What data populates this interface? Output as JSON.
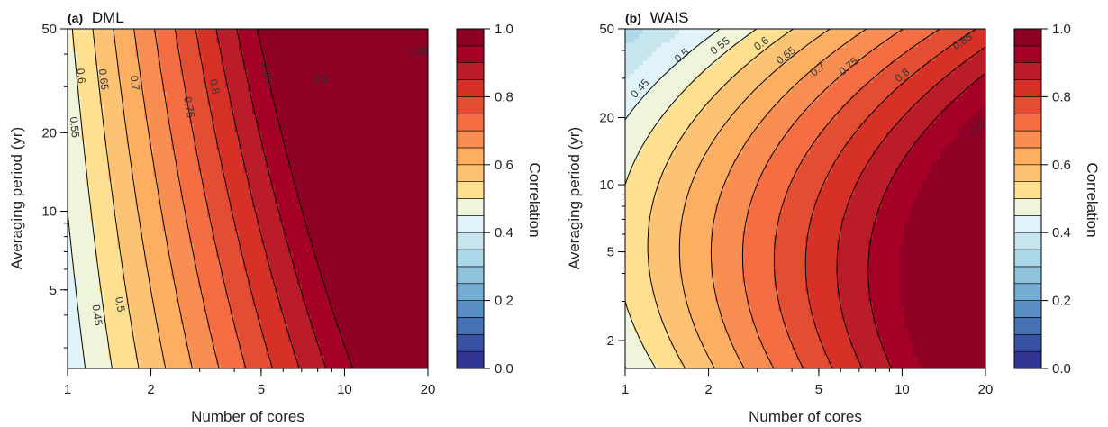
{
  "colors": [
    "#313695",
    "#3a52a3",
    "#4671b3",
    "#5b8ec2",
    "#74add1",
    "#91c3dd",
    "#abd9e9",
    "#c6e5ef",
    "#e0f3f8",
    "#eef5db",
    "#fee090",
    "#fdc374",
    "#fdae61",
    "#f88e52",
    "#f46d43",
    "#e34e33",
    "#d73027",
    "#bb1c29",
    "#a50026",
    "#8e0125"
  ],
  "chart_data": [
    {
      "type": "heatmap",
      "panel": "(a)",
      "title": "DML",
      "xlabel": "Number of cores",
      "ylabel": "Averaging period (yr)",
      "x_scale": "log",
      "y_scale": "log",
      "xlim": [
        1,
        20
      ],
      "ylim": [
        2.5,
        50
      ],
      "x_ticks": [
        "1",
        "2",
        "5",
        "10",
        "20"
      ],
      "y_ticks": [
        "5",
        "10",
        "20",
        "50"
      ],
      "colorbar_label": "Correlation",
      "colorbar_ticks": [
        "0.0",
        "0.2",
        "0.4",
        "0.6",
        "0.8",
        "1.0"
      ],
      "contour_levels": [
        0.45,
        0.5,
        0.55,
        0.6,
        0.65,
        0.7,
        0.75,
        0.8,
        0.85,
        0.9,
        0.95
      ],
      "contour_labels": [
        {
          "text": "0.45",
          "x": 1.28,
          "y": 4.0,
          "level": 0.45
        },
        {
          "text": "0.5",
          "x": 1.55,
          "y": 4.4,
          "level": 0.5
        },
        {
          "text": "0.55",
          "x": 1.06,
          "y": 21,
          "level": 0.55
        },
        {
          "text": "0.6",
          "x": 1.12,
          "y": 33,
          "level": 0.6
        },
        {
          "text": "0.65",
          "x": 1.35,
          "y": 32,
          "level": 0.65
        },
        {
          "text": "0.7",
          "x": 1.75,
          "y": 31,
          "level": 0.7
        },
        {
          "text": "0.75",
          "x": 2.75,
          "y": 25,
          "level": 0.75
        },
        {
          "text": "0.8",
          "x": 3.4,
          "y": 30,
          "level": 0.8
        },
        {
          "text": "0.85",
          "x": 5.2,
          "y": 34,
          "level": 0.85
        },
        {
          "text": "0.9",
          "x": 8.2,
          "y": 32,
          "level": 0.9
        },
        {
          "text": "0.95",
          "x": 18.4,
          "y": 41,
          "level": 0.95
        }
      ]
    },
    {
      "type": "heatmap",
      "panel": "(b)",
      "title": "WAIS",
      "xlabel": "Number of cores",
      "ylabel": "Averaging period (yr)",
      "x_scale": "log",
      "y_scale": "log",
      "xlim": [
        1,
        20
      ],
      "ylim": [
        1.5,
        50
      ],
      "x_ticks": [
        "1",
        "2",
        "5",
        "10",
        "20"
      ],
      "y_ticks": [
        "2",
        "5",
        "10",
        "20",
        "50"
      ],
      "colorbar_label": "Correlation",
      "colorbar_ticks": [
        "0.0",
        "0.2",
        "0.4",
        "0.6",
        "0.8",
        "1.0"
      ],
      "contour_levels": [
        0.45,
        0.5,
        0.55,
        0.6,
        0.65,
        0.7,
        0.75,
        0.8,
        0.85,
        0.9
      ],
      "contour_labels": [
        {
          "text": "0.45",
          "x": 1.13,
          "y": 27,
          "level": 0.45
        },
        {
          "text": "0.5",
          "x": 1.6,
          "y": 38,
          "level": 0.5
        },
        {
          "text": "0.55",
          "x": 2.2,
          "y": 42,
          "level": 0.55
        },
        {
          "text": "0.6",
          "x": 3.1,
          "y": 43,
          "level": 0.6
        },
        {
          "text": "0.65",
          "x": 3.8,
          "y": 38,
          "level": 0.65
        },
        {
          "text": "0.7",
          "x": 4.95,
          "y": 33,
          "level": 0.7
        },
        {
          "text": "0.75",
          "x": 6.4,
          "y": 34,
          "level": 0.75
        },
        {
          "text": "0.8",
          "x": 10.0,
          "y": 31,
          "level": 0.8
        },
        {
          "text": "0.85",
          "x": 16.5,
          "y": 44,
          "level": 0.85
        },
        {
          "text": "0.9",
          "x": 18.8,
          "y": 18,
          "level": 0.9
        }
      ]
    }
  ]
}
